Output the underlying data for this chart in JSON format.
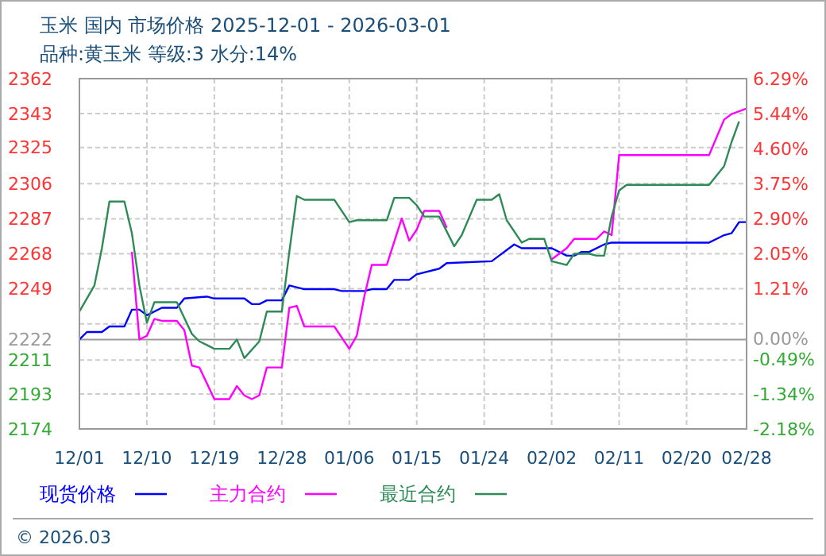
{
  "chart_data": {
    "type": "line",
    "title": "玉米 国内 市场价格 2025-12-01 - 2026-03-01",
    "subtitle": "品种:黄玉米 等级:3 水分:14%",
    "annotations": [
      "© 2026.03"
    ],
    "xlim": [
      "2025-12-01",
      "2026-02-28"
    ],
    "xticks": [
      {
        "value": "2025-12-01",
        "label": "12/01"
      },
      {
        "value": "2025-12-10",
        "label": "12/10"
      },
      {
        "value": "2025-12-19",
        "label": "12/19"
      },
      {
        "value": "2025-12-28",
        "label": "12/28"
      },
      {
        "value": "2026-01-06",
        "label": "01/06"
      },
      {
        "value": "2026-01-15",
        "label": "01/15"
      },
      {
        "value": "2026-01-24",
        "label": "01/24"
      },
      {
        "value": "2026-02-02",
        "label": "02/02"
      },
      {
        "value": "2026-02-11",
        "label": "02/11"
      },
      {
        "value": "2026-02-20",
        "label": "02/20"
      },
      {
        "value": "2026-02-28",
        "label": "02/28"
      }
    ],
    "ylim": [
      2174,
      2362
    ],
    "yticks": [
      2362,
      {
        "value": 2343.2,
        "label": "2343"
      },
      {
        "value": 2325,
        "label": "2325"
      },
      {
        "value": 2305.6,
        "label": "2306"
      },
      {
        "value": 2286.8,
        "label": "2287"
      },
      2268,
      {
        "value": 2249.2,
        "label": "2249"
      },
      {
        "value": 2230.4,
        "label": null
      },
      {
        "value": 2211,
        "label": "2211"
      },
      {
        "value": 2192.8,
        "label": "2193"
      },
      2174
    ],
    "y2lim": [
      -2.18,
      6.29
    ],
    "y2ticks": [
      {
        "value": 6.29,
        "label": "6.29%"
      },
      {
        "value": 5.44,
        "label": "5.44%"
      },
      {
        "value": 4.6,
        "label": "4.60%"
      },
      {
        "value": 3.75,
        "label": "3.75%"
      },
      {
        "value": 2.9,
        "label": "2.90%"
      },
      {
        "value": 2.05,
        "label": "2.05%"
      },
      {
        "value": 1.21,
        "label": "1.21%"
      },
      {
        "value": 0,
        "label": "0.00%"
      },
      {
        "value": -0.49,
        "label": "-0.49%"
      },
      {
        "value": -1.34,
        "label": "-1.34%"
      },
      {
        "value": -2.18,
        "label": "-2.18%"
      }
    ],
    "ref_lines": [
      {
        "axis": "y",
        "value": 2222,
        "label": "2222",
        "color": "#999999"
      }
    ],
    "grid": true,
    "legend": "bottom",
    "line_style": "solid",
    "series": [
      {
        "name": "现货价格",
        "color": "#0000ff",
        "x": [
          "2025-12-01",
          "2025-12-02",
          "2025-12-04",
          "2025-12-05",
          "2025-12-07",
          "2025-12-08",
          "2025-12-09",
          "2025-12-10",
          "2025-12-12",
          "2025-12-14",
          "2025-12-15",
          "2025-12-18",
          "2025-12-19",
          "2025-12-23",
          "2025-12-24",
          "2025-12-25",
          "2025-12-26",
          "2025-12-28",
          "2025-12-29",
          "2025-12-31",
          "2026-01-04",
          "2026-01-05",
          "2026-01-08",
          "2026-01-09",
          "2026-01-11",
          "2026-01-12",
          "2026-01-14",
          "2026-01-15",
          "2026-01-18",
          "2026-01-19",
          "2026-01-25",
          "2026-01-28",
          "2026-01-29",
          "2026-02-02",
          "2026-02-04",
          "2026-02-05",
          "2026-02-06",
          "2026-02-07",
          "2026-02-09",
          "2026-02-10",
          "2026-02-23",
          "2026-02-24",
          "2026-02-25",
          "2026-02-26",
          "2026-02-27",
          "2026-02-28"
        ],
        "values": [
          2222,
          2226,
          2226,
          2229,
          2229,
          2238,
          2238,
          2235,
          2239,
          2239,
          2244,
          2245,
          2244,
          2244,
          2241,
          2241,
          2243,
          2243,
          2251,
          2249,
          2249,
          2248,
          2248,
          2249,
          2249,
          2254,
          2254,
          2257,
          2260,
          2263,
          2264,
          2273,
          2271,
          2271,
          2267,
          2267,
          2269,
          2269,
          2273,
          2274,
          2274,
          2276,
          2278,
          2279,
          2285,
          2285
        ]
      },
      {
        "name": "主力合约",
        "color": "#ff00ff",
        "x": [
          "2025-12-08",
          "2025-12-09",
          "2025-12-10",
          "2025-12-11",
          "2025-12-12",
          "2025-12-14",
          "2025-12-15",
          "2025-12-16",
          "2025-12-17",
          "2025-12-19",
          "2025-12-21",
          "2025-12-22",
          "2025-12-23",
          "2025-12-24",
          "2025-12-25",
          "2025-12-26",
          "2025-12-28",
          "2025-12-29",
          "2025-12-30",
          "2025-12-31",
          "2026-01-04",
          "2026-01-06",
          "2026-01-07",
          "2026-01-08",
          "2026-01-09",
          "2026-01-11",
          "2026-01-13",
          "2026-01-14",
          "2026-01-15",
          "2026-01-16",
          "2026-01-18",
          "2026-01-19",
          "2026-01-20",
          "2026-02-02",
          "2026-02-04",
          "2026-02-05",
          "2026-02-08",
          "2026-02-09",
          "2026-02-10",
          "2026-02-11",
          "2026-02-23",
          "2026-02-25",
          "2026-02-26",
          "2026-02-28"
        ],
        "values": [
          2269,
          2222,
          2224,
          2233,
          2232,
          2232,
          2227,
          2208,
          2207,
          2190,
          2190,
          2197,
          2192,
          2190,
          2192,
          2207,
          2207,
          2239,
          2240,
          2229,
          2229,
          2217,
          2224,
          2245,
          2262,
          2262,
          2287,
          2275,
          2281,
          2291,
          2291,
          2282,
          null,
          2265,
          2271,
          2276,
          2276,
          2280,
          2278,
          2321,
          2321,
          2340,
          2343,
          2346
        ]
      },
      {
        "name": "最近合约",
        "color": "#2e8b57",
        "x": [
          "2025-12-01",
          "2025-12-03",
          "2025-12-04",
          "2025-12-05",
          "2025-12-07",
          "2025-12-08",
          "2025-12-09",
          "2025-12-10",
          "2025-12-11",
          "2025-12-14",
          "2025-12-16",
          "2025-12-17",
          "2025-12-18",
          "2025-12-19",
          "2025-12-21",
          "2025-12-22",
          "2025-12-23",
          "2025-12-25",
          "2025-12-26",
          "2025-12-28",
          "2025-12-29",
          "2025-12-30",
          "2025-12-31",
          "2026-01-04",
          "2026-01-06",
          "2026-01-07",
          "2026-01-11",
          "2026-01-12",
          "2026-01-14",
          "2026-01-15",
          "2026-01-16",
          "2026-01-18",
          "2026-01-20",
          "2026-01-21",
          "2026-01-23",
          "2026-01-25",
          "2026-01-26",
          "2026-01-27",
          "2026-01-29",
          "2026-01-30",
          "2026-02-01",
          "2026-02-02",
          "2026-02-04",
          "2026-02-05",
          "2026-02-07",
          "2026-02-08",
          "2026-02-09",
          "2026-02-10",
          "2026-02-11",
          "2026-02-12",
          "2026-02-23",
          "2026-02-25",
          "2026-02-26",
          "2026-02-27"
        ],
        "values": [
          2237,
          2251,
          2271,
          2296,
          2296,
          2279,
          2251,
          2231,
          2242,
          2242,
          2225,
          2221,
          2219,
          2217,
          2217,
          2222,
          2212,
          2221,
          2237,
          2237,
          2269,
          2299,
          2297,
          2297,
          2285,
          2286,
          2286,
          2298,
          2298,
          2294,
          2288,
          2288,
          2272,
          2278,
          2297,
          2297,
          2300,
          2286,
          2274,
          2276,
          2276,
          2264,
          2262,
          2268,
          2268,
          2267,
          2267,
          2288,
          2302,
          2305,
          2305,
          2315,
          2328,
          2339
        ]
      }
    ]
  }
}
